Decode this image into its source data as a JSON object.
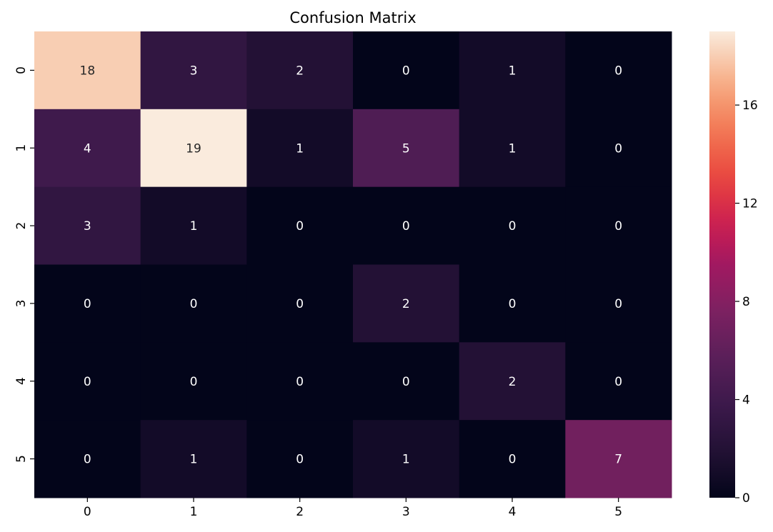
{
  "chart_data": {
    "type": "heatmap",
    "title": "Confusion Matrix",
    "xlabel": "",
    "ylabel": "",
    "x_categories": [
      "0",
      "1",
      "2",
      "3",
      "4",
      "5"
    ],
    "y_categories": [
      "0",
      "1",
      "2",
      "3",
      "4",
      "5"
    ],
    "values": [
      [
        18,
        3,
        2,
        0,
        1,
        0
      ],
      [
        4,
        19,
        1,
        5,
        1,
        0
      ],
      [
        3,
        1,
        0,
        0,
        0,
        0
      ],
      [
        0,
        0,
        0,
        2,
        0,
        0
      ],
      [
        0,
        0,
        0,
        0,
        2,
        0
      ],
      [
        0,
        1,
        0,
        1,
        0,
        7
      ]
    ],
    "colormap": "rocket",
    "color_range": [
      0,
      19
    ],
    "colorbar_ticks": [
      0,
      4,
      8,
      12,
      16
    ],
    "annotations": true,
    "grid": false
  }
}
